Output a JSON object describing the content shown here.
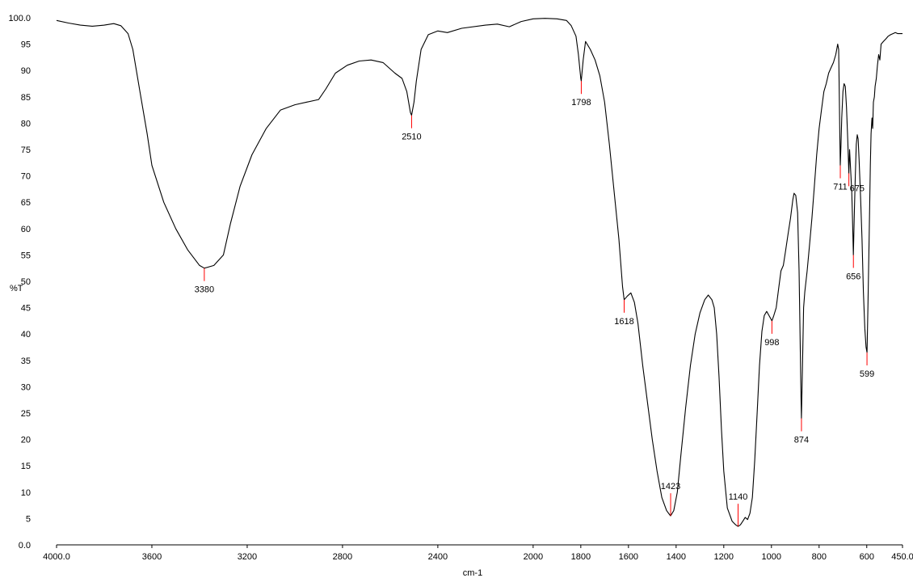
{
  "chart_data": {
    "type": "line",
    "title": "",
    "xlabel": "cm-1",
    "ylabel": "%T",
    "xlim": [
      4000,
      450
    ],
    "ylim": [
      0,
      100
    ],
    "x_reversed": true,
    "grid": false,
    "line_color": "#000000",
    "marker_color": "#ff0000",
    "x_ticks": [
      {
        "value": 4000,
        "label": "4000.0"
      },
      {
        "value": 3600,
        "label": "3600"
      },
      {
        "value": 3200,
        "label": "3200"
      },
      {
        "value": 2800,
        "label": "2800"
      },
      {
        "value": 2400,
        "label": "2400"
      },
      {
        "value": 2000,
        "label": "2000"
      },
      {
        "value": 1800,
        "label": "1800"
      },
      {
        "value": 1600,
        "label": "1600"
      },
      {
        "value": 1400,
        "label": "1400"
      },
      {
        "value": 1200,
        "label": "1200"
      },
      {
        "value": 1000,
        "label": "1000"
      },
      {
        "value": 800,
        "label": "800"
      },
      {
        "value": 600,
        "label": "600"
      },
      {
        "value": 450,
        "label": "450.0"
      }
    ],
    "y_ticks": [
      {
        "value": 100,
        "label": "100.0"
      },
      {
        "value": 95,
        "label": "95"
      },
      {
        "value": 90,
        "label": "90"
      },
      {
        "value": 85,
        "label": "85"
      },
      {
        "value": 80,
        "label": "80"
      },
      {
        "value": 75,
        "label": "75"
      },
      {
        "value": 70,
        "label": "70"
      },
      {
        "value": 65,
        "label": "65"
      },
      {
        "value": 60,
        "label": "60"
      },
      {
        "value": 55,
        "label": "55"
      },
      {
        "value": 50,
        "label": "50"
      },
      {
        "value": 45,
        "label": "45"
      },
      {
        "value": 40,
        "label": "40"
      },
      {
        "value": 35,
        "label": "35"
      },
      {
        "value": 30,
        "label": "30"
      },
      {
        "value": 25,
        "label": "25"
      },
      {
        "value": 20,
        "label": "20"
      },
      {
        "value": 15,
        "label": "15"
      },
      {
        "value": 10,
        "label": "10"
      },
      {
        "value": 5,
        "label": "5"
      },
      {
        "value": 0,
        "label": "0.0"
      }
    ],
    "series": [
      {
        "points": [
          [
            4000,
            99.5
          ],
          [
            3950,
            99.0
          ],
          [
            3900,
            98.6
          ],
          [
            3850,
            98.4
          ],
          [
            3800,
            98.6
          ],
          [
            3760,
            98.9
          ],
          [
            3730,
            98.5
          ],
          [
            3700,
            97.0
          ],
          [
            3680,
            94.0
          ],
          [
            3650,
            86.0
          ],
          [
            3620,
            78.0
          ],
          [
            3600,
            72.0
          ],
          [
            3550,
            65.0
          ],
          [
            3500,
            60.0
          ],
          [
            3450,
            56.0
          ],
          [
            3400,
            53.0
          ],
          [
            3380,
            52.5
          ],
          [
            3340,
            53.0
          ],
          [
            3300,
            55.0
          ],
          [
            3270,
            61.0
          ],
          [
            3230,
            68.0
          ],
          [
            3180,
            74.0
          ],
          [
            3120,
            79.0
          ],
          [
            3060,
            82.5
          ],
          [
            3000,
            83.5
          ],
          [
            2950,
            84.0
          ],
          [
            2900,
            84.5
          ],
          [
            2870,
            86.5
          ],
          [
            2830,
            89.5
          ],
          [
            2780,
            91.0
          ],
          [
            2730,
            91.8
          ],
          [
            2680,
            92.0
          ],
          [
            2630,
            91.5
          ],
          [
            2580,
            89.5
          ],
          [
            2550,
            88.5
          ],
          [
            2530,
            86.0
          ],
          [
            2515,
            82.0
          ],
          [
            2510,
            81.5
          ],
          [
            2500,
            84.0
          ],
          [
            2490,
            88.0
          ],
          [
            2470,
            94.0
          ],
          [
            2440,
            96.8
          ],
          [
            2400,
            97.5
          ],
          [
            2360,
            97.2
          ],
          [
            2300,
            98.0
          ],
          [
            2200,
            98.6
          ],
          [
            2150,
            98.8
          ],
          [
            2100,
            98.3
          ],
          [
            2050,
            99.3
          ],
          [
            2000,
            99.8
          ],
          [
            1950,
            99.9
          ],
          [
            1900,
            99.8
          ],
          [
            1860,
            99.5
          ],
          [
            1840,
            98.5
          ],
          [
            1820,
            96.5
          ],
          [
            1810,
            93.0
          ],
          [
            1800,
            88.5
          ],
          [
            1798,
            88.0
          ],
          [
            1790,
            92.0
          ],
          [
            1780,
            95.5
          ],
          [
            1760,
            94.0
          ],
          [
            1740,
            92.0
          ],
          [
            1720,
            89.0
          ],
          [
            1700,
            84.0
          ],
          [
            1680,
            76.0
          ],
          [
            1660,
            67.0
          ],
          [
            1640,
            58.0
          ],
          [
            1625,
            49.0
          ],
          [
            1618,
            46.5
          ],
          [
            1605,
            47.2
          ],
          [
            1590,
            47.8
          ],
          [
            1575,
            46.0
          ],
          [
            1560,
            42.0
          ],
          [
            1540,
            34.0
          ],
          [
            1520,
            27.0
          ],
          [
            1500,
            20.0
          ],
          [
            1480,
            14.0
          ],
          [
            1460,
            9.0
          ],
          [
            1440,
            6.5
          ],
          [
            1425,
            5.6
          ],
          [
            1423,
            5.5
          ],
          [
            1410,
            6.5
          ],
          [
            1395,
            10.0
          ],
          [
            1380,
            17.0
          ],
          [
            1360,
            26.0
          ],
          [
            1340,
            34.0
          ],
          [
            1320,
            40.0
          ],
          [
            1300,
            44.0
          ],
          [
            1280,
            46.5
          ],
          [
            1265,
            47.4
          ],
          [
            1250,
            46.5
          ],
          [
            1240,
            45.0
          ],
          [
            1230,
            40.0
          ],
          [
            1220,
            32.0
          ],
          [
            1210,
            22.0
          ],
          [
            1200,
            14.0
          ],
          [
            1185,
            7.0
          ],
          [
            1165,
            4.5
          ],
          [
            1150,
            3.8
          ],
          [
            1140,
            3.5
          ],
          [
            1130,
            3.8
          ],
          [
            1120,
            4.5
          ],
          [
            1110,
            5.2
          ],
          [
            1100,
            4.8
          ],
          [
            1090,
            6.0
          ],
          [
            1080,
            9.0
          ],
          [
            1070,
            16.0
          ],
          [
            1060,
            25.0
          ],
          [
            1050,
            34.0
          ],
          [
            1040,
            40.5
          ],
          [
            1030,
            43.5
          ],
          [
            1020,
            44.3
          ],
          [
            1010,
            43.5
          ],
          [
            998,
            42.5
          ],
          [
            990,
            43.5
          ],
          [
            980,
            45.0
          ],
          [
            970,
            48.5
          ],
          [
            960,
            52.0
          ],
          [
            950,
            53.0
          ],
          [
            940,
            56.0
          ],
          [
            930,
            59.0
          ],
          [
            920,
            62.0
          ],
          [
            910,
            65.5
          ],
          [
            905,
            66.7
          ],
          [
            898,
            66.3
          ],
          [
            890,
            63.0
          ],
          [
            884,
            52.0
          ],
          [
            880,
            40.0
          ],
          [
            876,
            28.0
          ],
          [
            874,
            24.0
          ],
          [
            870,
            33.0
          ],
          [
            865,
            45.0
          ],
          [
            860,
            48.0
          ],
          [
            850,
            52.0
          ],
          [
            840,
            57.0
          ],
          [
            830,
            62.0
          ],
          [
            820,
            68.0
          ],
          [
            810,
            74.0
          ],
          [
            800,
            79.0
          ],
          [
            790,
            82.5
          ],
          [
            780,
            86.0
          ],
          [
            770,
            87.5
          ],
          [
            760,
            89.5
          ],
          [
            750,
            90.5
          ],
          [
            740,
            91.5
          ],
          [
            730,
            93.0
          ],
          [
            722,
            95.0
          ],
          [
            718,
            94.0
          ],
          [
            715,
            85.0
          ],
          [
            713,
            78.0
          ],
          [
            711,
            72.0
          ],
          [
            708,
            76.0
          ],
          [
            705,
            81.0
          ],
          [
            700,
            86.0
          ],
          [
            695,
            87.5
          ],
          [
            690,
            87.0
          ],
          [
            685,
            83.0
          ],
          [
            680,
            77.0
          ],
          [
            675,
            70.5
          ],
          [
            672,
            75.0
          ],
          [
            668,
            71.5
          ],
          [
            663,
            67.0
          ],
          [
            660,
            62.0
          ],
          [
            656,
            55.0
          ],
          [
            652,
            63.0
          ],
          [
            648,
            70.0
          ],
          [
            644,
            76.0
          ],
          [
            640,
            77.8
          ],
          [
            636,
            77.0
          ],
          [
            632,
            73.0
          ],
          [
            626,
            66.0
          ],
          [
            620,
            58.0
          ],
          [
            614,
            48.0
          ],
          [
            608,
            41.0
          ],
          [
            603,
            37.5
          ],
          [
            599,
            36.5
          ],
          [
            595,
            45.0
          ],
          [
            590,
            58.0
          ],
          [
            585,
            72.0
          ],
          [
            582,
            78.0
          ],
          [
            578,
            81.0
          ],
          [
            575,
            79.0
          ],
          [
            572,
            84.0
          ],
          [
            568,
            85.0
          ],
          [
            565,
            87.0
          ],
          [
            560,
            88.5
          ],
          [
            555,
            91.0
          ],
          [
            550,
            93.0
          ],
          [
            545,
            92.0
          ],
          [
            540,
            95.0
          ],
          [
            530,
            95.5
          ],
          [
            520,
            96.0
          ],
          [
            510,
            96.5
          ],
          [
            500,
            96.8
          ],
          [
            490,
            97.0
          ],
          [
            480,
            97.2
          ],
          [
            470,
            97.0
          ],
          [
            460,
            97.0
          ],
          [
            450,
            97.0
          ]
        ]
      }
    ],
    "peaks": [
      {
        "x": 3380,
        "y": 52.5,
        "label": "3380",
        "label_pos": "below"
      },
      {
        "x": 2510,
        "y": 81.5,
        "label": "2510",
        "label_pos": "below"
      },
      {
        "x": 1798,
        "y": 88.0,
        "label": "1798",
        "label_pos": "below"
      },
      {
        "x": 1618,
        "y": 46.5,
        "label": "1618",
        "label_pos": "below"
      },
      {
        "x": 1423,
        "y": 5.5,
        "label": "1423",
        "label_pos": "above"
      },
      {
        "x": 1140,
        "y": 3.5,
        "label": "1140",
        "label_pos": "above"
      },
      {
        "x": 998,
        "y": 42.5,
        "label": "998",
        "label_pos": "below"
      },
      {
        "x": 874,
        "y": 24.0,
        "label": "874",
        "label_pos": "below"
      },
      {
        "x": 711,
        "y": 72.0,
        "label": "711",
        "label_pos": "below"
      },
      {
        "x": 675,
        "y": 70.5,
        "label": "675",
        "label_pos": "below-right"
      },
      {
        "x": 656,
        "y": 55.0,
        "label": "656",
        "label_pos": "below"
      },
      {
        "x": 599,
        "y": 36.5,
        "label": "599",
        "label_pos": "below"
      }
    ]
  }
}
